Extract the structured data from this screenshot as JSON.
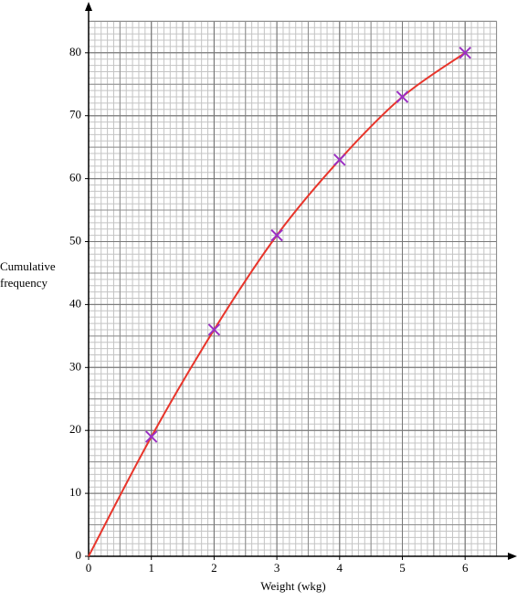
{
  "chart_data": {
    "type": "line",
    "xlabel": "Weight (wkg)",
    "ylabel": "Cumulative frequency",
    "x": [
      0,
      1,
      2,
      3,
      4,
      5,
      6
    ],
    "values": [
      0,
      19,
      36,
      51,
      63,
      73,
      80
    ],
    "color": "#e8352b",
    "points": {
      "x": [
        1,
        2,
        3,
        4,
        5,
        6
      ],
      "values": [
        19,
        36,
        51,
        63,
        73,
        80
      ],
      "color": "#9b2fc4"
    },
    "xlim": [
      0,
      6.5
    ],
    "ylim": [
      0,
      85
    ],
    "xticks": [
      0,
      1,
      2,
      3,
      4,
      5,
      6
    ],
    "yticks": [
      0,
      10,
      20,
      30,
      40,
      50,
      60,
      70,
      80
    ],
    "grid": true,
    "xminor": 0.1,
    "yminor": 1,
    "xmid": 0.5,
    "ymid": 5
  }
}
